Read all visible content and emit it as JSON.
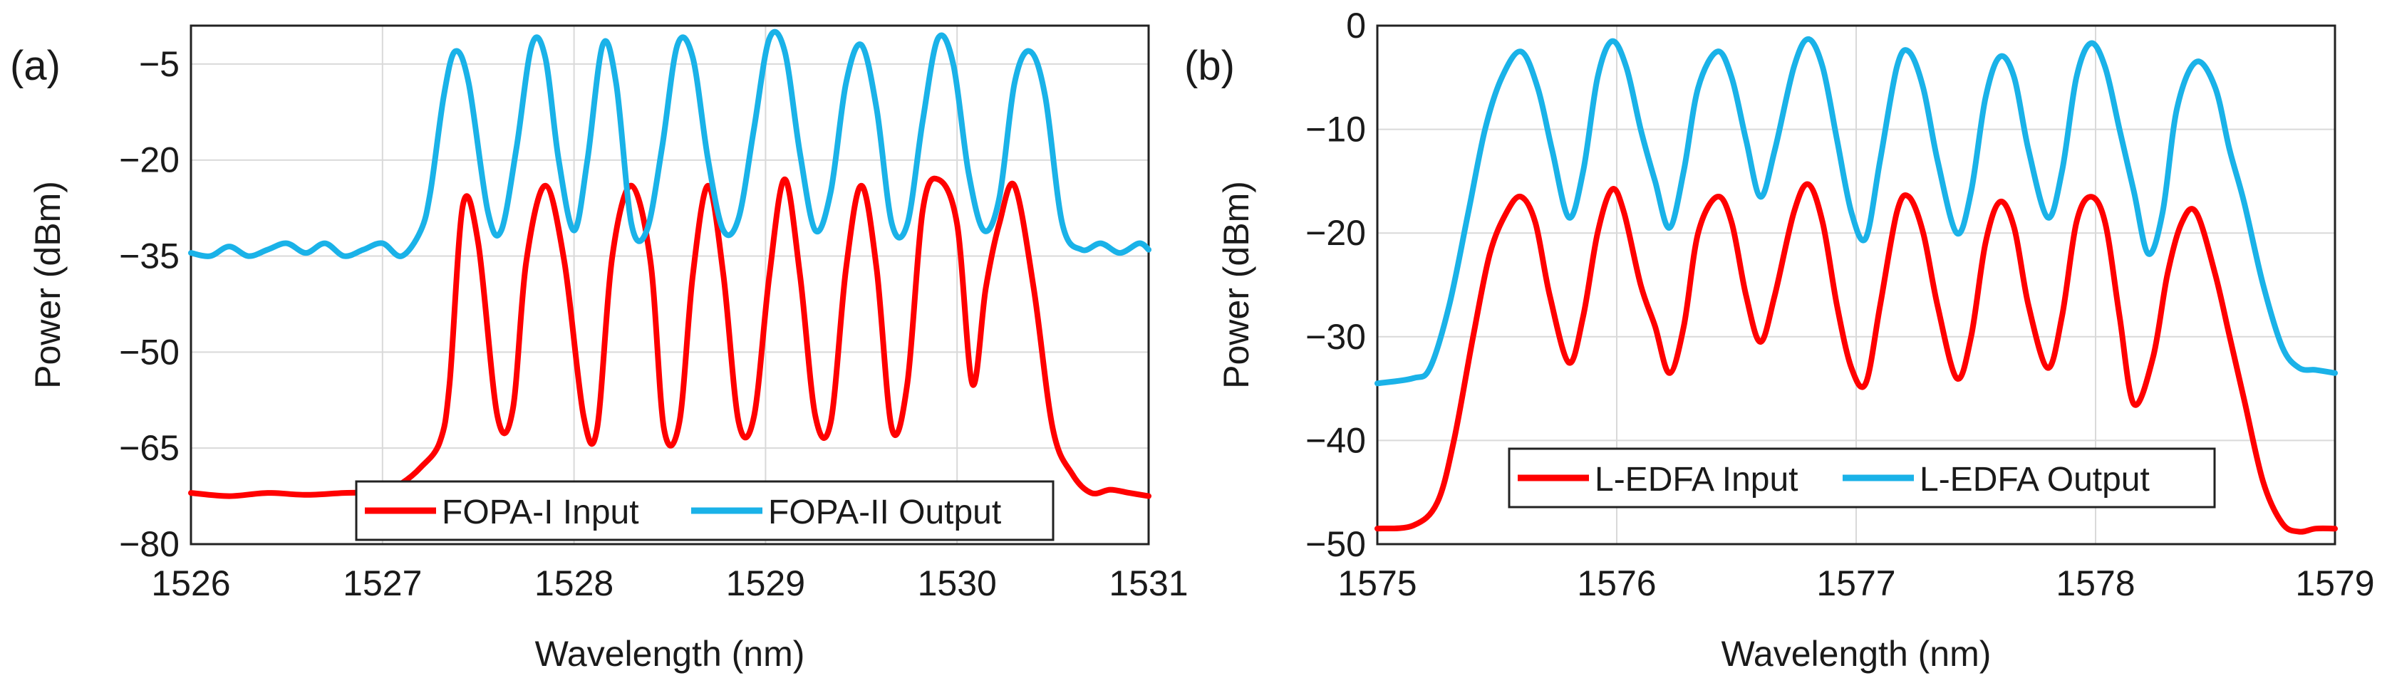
{
  "chart_data": [
    {
      "panel_label": "(a)",
      "type": "line",
      "xlabel": "Wavelength (nm)",
      "ylabel": "Power (dBm)",
      "xlim": [
        1526,
        1531
      ],
      "ylim": [
        -80,
        1
      ],
      "xticks": [
        1526,
        1527,
        1528,
        1529,
        1530,
        1531
      ],
      "xtick_labels": [
        "1526",
        "1527",
        "1528",
        "1529",
        "1530",
        "1531"
      ],
      "yticks": [
        -80,
        -65,
        -50,
        -35,
        -20,
        -5
      ],
      "ytick_labels": [
        "−80",
        "−65",
        "−50",
        "−35",
        "−20",
        "−5"
      ],
      "grid": true,
      "legend": "bottom-center",
      "series": [
        {
          "name": "FOPA-I Input",
          "color": "#ff0000",
          "x": [
            1526.0,
            1526.2,
            1526.4,
            1526.6,
            1526.8,
            1527.0,
            1527.1,
            1527.2,
            1527.3,
            1527.35,
            1527.42,
            1527.5,
            1527.6,
            1527.68,
            1527.75,
            1527.85,
            1527.95,
            1528.05,
            1528.12,
            1528.2,
            1528.3,
            1528.4,
            1528.47,
            1528.55,
            1528.62,
            1528.7,
            1528.78,
            1528.86,
            1528.94,
            1529.02,
            1529.1,
            1529.18,
            1529.26,
            1529.34,
            1529.42,
            1529.5,
            1529.58,
            1529.66,
            1529.74,
            1529.82,
            1529.9,
            1530.0,
            1530.08,
            1530.15,
            1530.22,
            1530.3,
            1530.4,
            1530.5,
            1530.6,
            1530.7,
            1530.8,
            1530.9,
            1531.0
          ],
          "values": [
            -72,
            -72.5,
            -72,
            -72.3,
            -72,
            -71.8,
            -70.5,
            -68,
            -64,
            -55,
            -27,
            -33,
            -60,
            -59,
            -36,
            -24,
            -36,
            -60,
            -62,
            -35,
            -24,
            -36,
            -62,
            -61,
            -38,
            -24,
            -38,
            -61,
            -60,
            -38,
            -23,
            -38,
            -60,
            -61,
            -37,
            -24,
            -37,
            -62,
            -55,
            -28,
            -23,
            -30,
            -55,
            -40,
            -30,
            -24,
            -40,
            -62,
            -69,
            -72,
            -71.5,
            -72,
            -72.5
          ]
        },
        {
          "name": "FOPA-II Output",
          "color": "#1ab2e8",
          "x": [
            1526.0,
            1526.1,
            1526.2,
            1526.3,
            1526.4,
            1526.5,
            1526.6,
            1526.7,
            1526.8,
            1526.9,
            1527.0,
            1527.1,
            1527.2,
            1527.25,
            1527.32,
            1527.38,
            1527.45,
            1527.55,
            1527.62,
            1527.7,
            1527.78,
            1527.85,
            1527.92,
            1528.0,
            1528.07,
            1528.15,
            1528.22,
            1528.3,
            1528.38,
            1528.46,
            1528.54,
            1528.62,
            1528.7,
            1528.78,
            1528.86,
            1528.94,
            1529.02,
            1529.1,
            1529.18,
            1529.26,
            1529.34,
            1529.42,
            1529.5,
            1529.58,
            1529.66,
            1529.74,
            1529.82,
            1529.9,
            1529.98,
            1530.06,
            1530.14,
            1530.22,
            1530.3,
            1530.38,
            1530.46,
            1530.55,
            1530.65,
            1530.75,
            1530.85,
            1530.95,
            1531.0
          ],
          "values": [
            -34.5,
            -35,
            -33.5,
            -35,
            -34,
            -33,
            -34.5,
            -33,
            -35,
            -34,
            -33,
            -35,
            -31,
            -25,
            -10,
            -3,
            -8,
            -28,
            -31,
            -18,
            -2,
            -4,
            -20,
            -31,
            -20,
            -2,
            -8,
            -30,
            -31,
            -18,
            -2,
            -4,
            -20,
            -31,
            -29,
            -15,
            -1,
            -3,
            -19,
            -31,
            -25,
            -8,
            -2,
            -12,
            -30,
            -30,
            -14,
            -1,
            -5,
            -22,
            -31,
            -26,
            -8,
            -3,
            -10,
            -30,
            -34,
            -33,
            -34.5,
            -33,
            -34
          ]
        }
      ]
    },
    {
      "panel_label": "(b)",
      "type": "line",
      "xlabel": "Wavelength (nm)",
      "ylabel": "Power (dBm)",
      "xlim": [
        1575,
        1579
      ],
      "ylim": [
        -50,
        0
      ],
      "xticks": [
        1575,
        1576,
        1577,
        1578,
        1579
      ],
      "xtick_labels": [
        "1575",
        "1576",
        "1577",
        "1578",
        "1579"
      ],
      "yticks": [
        -50,
        -40,
        -30,
        -20,
        -10,
        0
      ],
      "ytick_labels": [
        "−50",
        "−40",
        "−30",
        "−20",
        "−10",
        "0"
      ],
      "grid": true,
      "legend": "bottom-center",
      "series": [
        {
          "name": "L-EDFA Input",
          "color": "#ff0000",
          "x": [
            1575.0,
            1575.15,
            1575.25,
            1575.32,
            1575.4,
            1575.47,
            1575.54,
            1575.6,
            1575.66,
            1575.72,
            1575.8,
            1575.86,
            1575.92,
            1575.98,
            1576.03,
            1576.1,
            1576.16,
            1576.22,
            1576.28,
            1576.34,
            1576.42,
            1576.48,
            1576.54,
            1576.6,
            1576.66,
            1576.74,
            1576.8,
            1576.86,
            1576.92,
            1576.98,
            1577.04,
            1577.1,
            1577.17,
            1577.22,
            1577.28,
            1577.34,
            1577.42,
            1577.48,
            1577.54,
            1577.6,
            1577.66,
            1577.72,
            1577.8,
            1577.86,
            1577.92,
            1577.98,
            1578.04,
            1578.1,
            1578.16,
            1578.24,
            1578.3,
            1578.36,
            1578.42,
            1578.5,
            1578.56,
            1578.62,
            1578.7,
            1578.78,
            1578.85,
            1578.92,
            1579.0
          ],
          "values": [
            -48.5,
            -48.2,
            -46,
            -40,
            -30,
            -22,
            -18,
            -16.5,
            -19,
            -26,
            -32.5,
            -28,
            -20,
            -15.8,
            -18,
            -25,
            -29,
            -33.5,
            -29,
            -20,
            -16.5,
            -19,
            -26,
            -30.5,
            -26,
            -18,
            -15.3,
            -19,
            -27,
            -33,
            -34.5,
            -27,
            -18,
            -16.5,
            -20,
            -27,
            -34,
            -30,
            -21,
            -17,
            -19.5,
            -27,
            -33,
            -28,
            -19,
            -16.5,
            -19,
            -28,
            -36.5,
            -32,
            -24,
            -19,
            -18,
            -24,
            -30,
            -36,
            -44,
            -48,
            -48.8,
            -48.5,
            -48.5
          ]
        },
        {
          "name": "L-EDFA Output",
          "color": "#1ab2e8",
          "x": [
            1575.0,
            1575.15,
            1575.22,
            1575.3,
            1575.38,
            1575.45,
            1575.52,
            1575.6,
            1575.67,
            1575.73,
            1575.8,
            1575.86,
            1575.92,
            1575.98,
            1576.04,
            1576.1,
            1576.16,
            1576.22,
            1576.28,
            1576.34,
            1576.42,
            1576.48,
            1576.54,
            1576.6,
            1576.66,
            1576.74,
            1576.8,
            1576.86,
            1576.92,
            1576.98,
            1577.04,
            1577.1,
            1577.17,
            1577.22,
            1577.28,
            1577.34,
            1577.42,
            1577.48,
            1577.54,
            1577.6,
            1577.66,
            1577.72,
            1577.8,
            1577.86,
            1577.92,
            1577.98,
            1578.04,
            1578.1,
            1578.16,
            1578.22,
            1578.28,
            1578.34,
            1578.42,
            1578.5,
            1578.56,
            1578.62,
            1578.7,
            1578.78,
            1578.85,
            1578.92,
            1579.0
          ],
          "values": [
            -34.5,
            -34,
            -33,
            -27,
            -18,
            -10,
            -5,
            -2.5,
            -6,
            -12,
            -18.5,
            -14,
            -5,
            -1.5,
            -4,
            -10,
            -15,
            -19.5,
            -14,
            -6,
            -2.5,
            -5,
            -11,
            -16.5,
            -12,
            -4,
            -1.3,
            -4,
            -11,
            -18,
            -20.5,
            -13,
            -4,
            -2.5,
            -6,
            -13,
            -20,
            -16,
            -7,
            -3,
            -5,
            -12,
            -18.5,
            -14,
            -5,
            -1.7,
            -4,
            -10,
            -16,
            -22,
            -18,
            -8,
            -3.5,
            -6,
            -12,
            -17,
            -25,
            -31,
            -33,
            -33.2,
            -33.5
          ]
        }
      ]
    }
  ]
}
